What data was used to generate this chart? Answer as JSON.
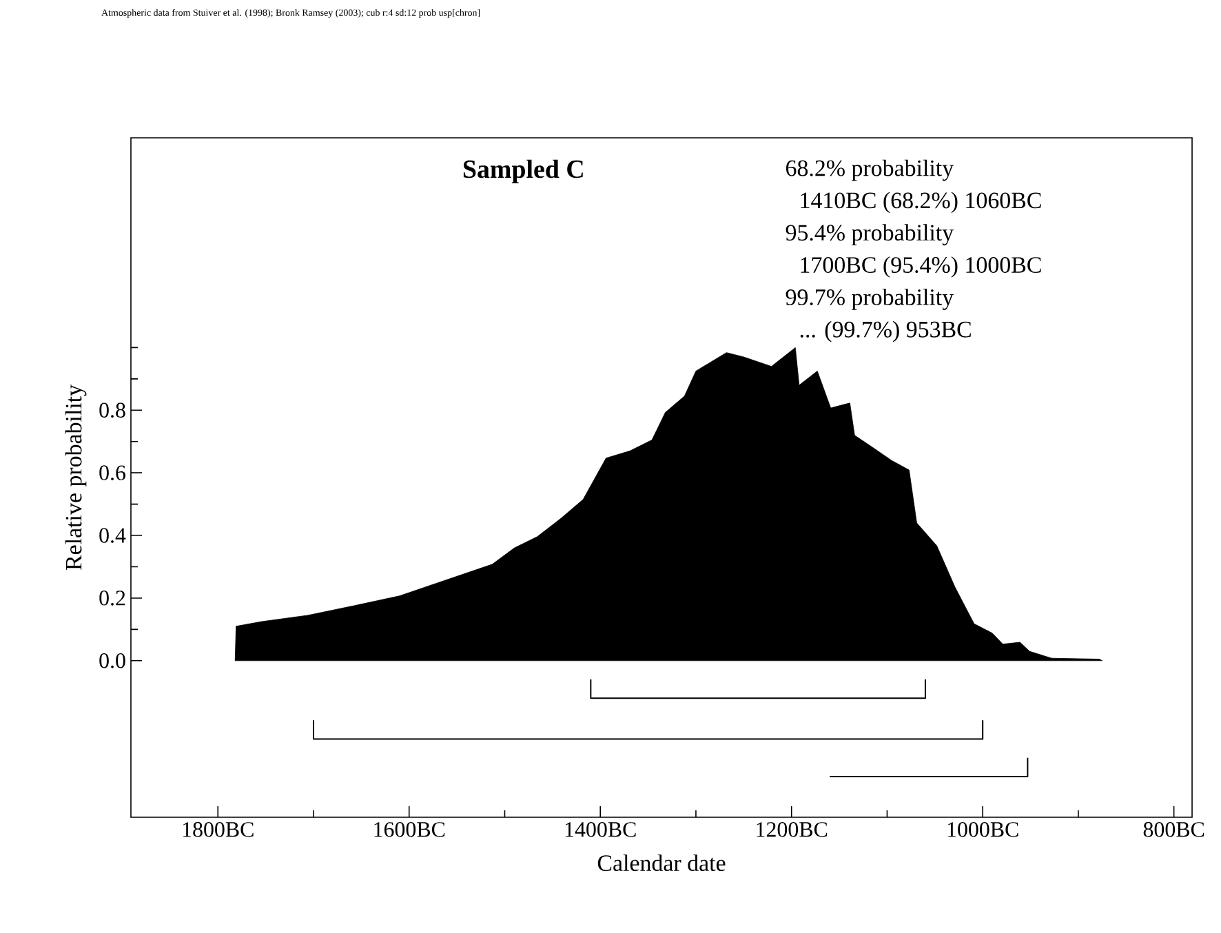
{
  "chart_data": {
    "type": "area",
    "title": "Sampled C",
    "xlabel": "Calendar date",
    "ylabel": "Relative probability",
    "annotations": [
      "Atmospheric data from Stuiver et al. (1998); Bronk Ramsey (2003); cub r:4 sd:12 prob usp[chron]",
      "68.2% probability",
      "1410BC (68.2%) 1060BC",
      "95.4% probability",
      "1700BC (95.4%) 1000BC",
      "99.7% probability",
      "... (99.7%) 953BC"
    ],
    "xlim": [
      -1891,
      -781
    ],
    "xticks": [
      {
        "value": -1800,
        "label": "1800BC"
      },
      {
        "value": -1700,
        "label": null
      },
      {
        "value": -1600,
        "label": "1600BC"
      },
      {
        "value": -1500,
        "label": null
      },
      {
        "value": -1400,
        "label": "1400BC"
      },
      {
        "value": -1300,
        "label": null
      },
      {
        "value": -1200,
        "label": "1200BC"
      },
      {
        "value": -1100,
        "label": null
      },
      {
        "value": -1000,
        "label": "1000BC"
      },
      {
        "value": -900,
        "label": null
      },
      {
        "value": -800,
        "label": "800BC"
      }
    ],
    "ylim": [
      -0.5,
      1.67
    ],
    "yticks": [
      {
        "value": 0,
        "label": "0.0"
      },
      {
        "value": 0.1,
        "label": null
      },
      0.2,
      {
        "value": 0.3,
        "label": null
      },
      0.4,
      {
        "value": 0.5,
        "label": null
      },
      0.6,
      {
        "value": 0.7,
        "label": null
      },
      0.8,
      {
        "value": 0.9,
        "label": null
      },
      {
        "value": 1.0,
        "label": null
      }
    ],
    "series": [
      {
        "color": "#000000",
        "x": [
          -1782,
          -1781,
          -1754,
          -1706,
          -1657,
          -1610,
          -1562,
          -1513,
          -1490,
          -1466,
          -1441,
          -1418,
          -1394,
          -1369,
          -1346,
          -1332,
          -1312,
          -1300,
          -1268,
          -1250,
          -1221,
          -1196,
          -1192,
          -1173,
          -1159,
          -1139,
          -1134,
          -1116,
          -1095,
          -1077,
          -1069,
          -1048,
          -1029,
          -1009,
          -990,
          -979,
          -961,
          -951,
          -928,
          -878,
          -875
        ],
        "values": [
          0,
          0.11,
          0.125,
          0.145,
          0.176,
          0.207,
          0.257,
          0.308,
          0.36,
          0.396,
          0.455,
          0.515,
          0.647,
          0.67,
          0.705,
          0.793,
          0.845,
          0.925,
          0.984,
          0.97,
          0.94,
          1.0,
          0.88,
          0.925,
          0.807,
          0.823,
          0.72,
          0.683,
          0.639,
          0.609,
          0.44,
          0.367,
          0.235,
          0.118,
          0.088,
          0.053,
          0.059,
          0.03,
          0.008,
          0.005,
          0
        ]
      },
      {
        "type": "line",
        "color": "#000000",
        "x": [
          -1410,
          -1410,
          -1060,
          -1060
        ],
        "values": [
          -0.06,
          -0.12,
          -0.12,
          -0.06
        ]
      },
      {
        "type": "line",
        "color": "#000000",
        "x": [
          -1700,
          -1700,
          -1000,
          -1000
        ],
        "values": [
          -0.19,
          -0.25,
          -0.25,
          -0.19
        ]
      },
      {
        "type": "line",
        "color": "#000000",
        "x": [
          -1160,
          -953,
          -953
        ],
        "values": [
          -0.37,
          -0.37,
          -0.31
        ]
      }
    ]
  }
}
